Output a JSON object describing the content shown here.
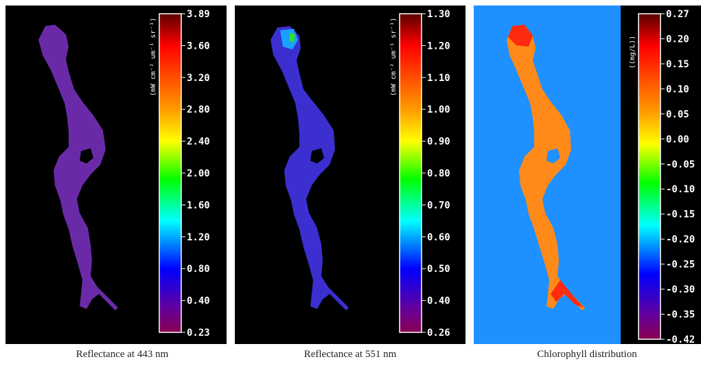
{
  "panels": [
    {
      "caption": "Reflectance at 443 nm",
      "units": "(mW cm⁻² um⁻¹ sr⁻¹)",
      "ticks": [
        "3.89",
        "3.60",
        "3.20",
        "2.80",
        "2.40",
        "2.00",
        "1.60",
        "1.20",
        "0.80",
        "0.40",
        "0.23"
      ],
      "background": "#000000",
      "lake_color": "#6a2aa8",
      "lake_accent": "#5a28b0"
    },
    {
      "caption": "Reflectance at 551 nm",
      "units": "(mW cm⁻² um⁻¹ sr⁻¹)",
      "ticks": [
        "1.30",
        "1.20",
        "1.10",
        "1.00",
        "0.90",
        "0.80",
        "0.70",
        "0.60",
        "0.50",
        "0.40",
        "0.26"
      ],
      "background": "#000000",
      "lake_color": "#3b2fd0",
      "lake_accent": "#2a3ae0"
    },
    {
      "caption": "Chlorophyll distribution",
      "units": "((mg/L))",
      "ticks": [
        "0.27",
        "0.20",
        "0.15",
        "0.10",
        "0.05",
        "0.00",
        "-0.05",
        "-0.10",
        "-0.15",
        "-0.20",
        "-0.25",
        "-0.30",
        "-0.35",
        "-0.42"
      ],
      "background": "#1e90ff",
      "lake_color": "#ff8a1a",
      "lake_accent": "#ff3a10"
    }
  ]
}
